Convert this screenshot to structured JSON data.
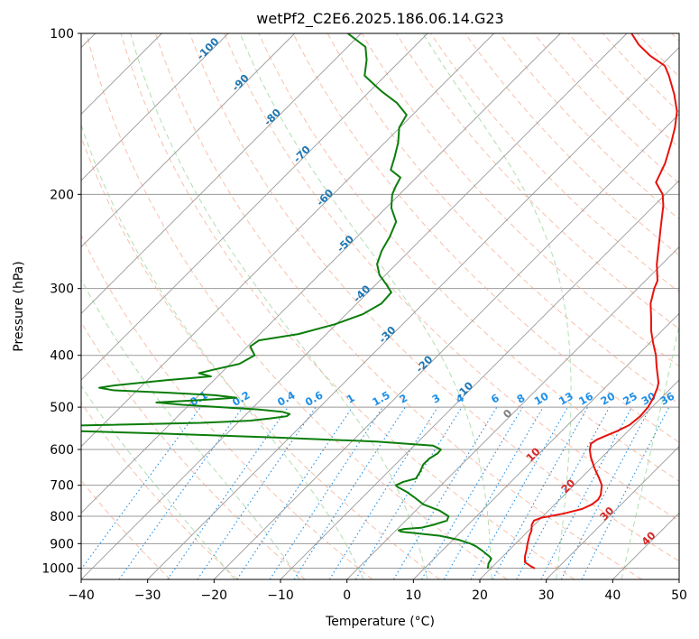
{
  "chart_data": {
    "type": "line",
    "chart_kind": "skew-T log-P diagram",
    "title": "wetPf2_C2E6.2025.186.06.14.G23",
    "xlabel": "Temperature (°C)",
    "ylabel": "Pressure (hPa)",
    "xlim": [
      -40,
      50
    ],
    "ylim": [
      1050,
      100
    ],
    "y_scale": "log",
    "x_ticks": [
      -40,
      -30,
      -20,
      -10,
      0,
      10,
      20,
      30,
      40,
      50
    ],
    "x_tick_labels": [
      "−40",
      "−30",
      "−20",
      "−10",
      "0",
      "10",
      "20",
      "30",
      "40",
      "50"
    ],
    "y_ticks": [
      100,
      200,
      300,
      400,
      500,
      600,
      700,
      800,
      900,
      1000
    ],
    "y_tick_labels": [
      "100",
      "200",
      "300",
      "400",
      "500",
      "600",
      "700",
      "800",
      "900",
      "1000"
    ],
    "grid": true,
    "colors": {
      "temperature": "#e8120c",
      "dewpoint": "#0b7d0b",
      "isotherm": "#999999",
      "dry_adiabat": "#f4a58a",
      "moist_adiabat": "#9fd49f",
      "mixing_ratio": "#1f8fe6",
      "isotherm_label": "#1f77b4",
      "dry_adiabat_label": "#d62728",
      "zero_label": "#7f7f7f"
    },
    "series": [
      {
        "key": "temperature",
        "points": [
          [
            1000,
            26.5
          ],
          [
            990,
            25.5
          ],
          [
            975,
            24.2
          ],
          [
            950,
            23.3
          ],
          [
            925,
            22.6
          ],
          [
            900,
            21.8
          ],
          [
            870,
            20.9
          ],
          [
            850,
            20.4
          ],
          [
            830,
            19.6
          ],
          [
            815,
            19.3
          ],
          [
            805,
            20.0
          ],
          [
            800,
            21.0
          ],
          [
            790,
            22.8
          ],
          [
            775,
            24.8
          ],
          [
            760,
            25.6
          ],
          [
            745,
            25.8
          ],
          [
            730,
            25.5
          ],
          [
            700,
            24.2
          ],
          [
            680,
            22.8
          ],
          [
            650,
            20.5
          ],
          [
            620,
            18.3
          ],
          [
            600,
            17.0
          ],
          [
            585,
            16.3
          ],
          [
            575,
            16.6
          ],
          [
            565,
            17.4
          ],
          [
            555,
            18.3
          ],
          [
            540,
            19.3
          ],
          [
            520,
            19.6
          ],
          [
            500,
            19.4
          ],
          [
            480,
            18.8
          ],
          [
            460,
            17.9
          ],
          [
            450,
            17.3
          ],
          [
            420,
            14.6
          ],
          [
            400,
            12.8
          ],
          [
            380,
            10.6
          ],
          [
            360,
            8.4
          ],
          [
            340,
            6.4
          ],
          [
            320,
            4.2
          ],
          [
            300,
            2.5
          ],
          [
            290,
            1.8
          ],
          [
            270,
            -0.8
          ],
          [
            250,
            -3.2
          ],
          [
            230,
            -5.8
          ],
          [
            210,
            -8.6
          ],
          [
            200,
            -10.4
          ],
          [
            190,
            -13.2
          ],
          [
            175,
            -14.7
          ],
          [
            160,
            -16.9
          ],
          [
            150,
            -18.6
          ],
          [
            140,
            -20.7
          ],
          [
            130,
            -23.7
          ],
          [
            120,
            -27.3
          ],
          [
            115,
            -29.4
          ],
          [
            110,
            -33.2
          ],
          [
            105,
            -36.5
          ],
          [
            100,
            -39.3
          ]
        ]
      },
      {
        "key": "dewpoint",
        "points": [
          [
            1000,
            19.5
          ],
          [
            980,
            18.9
          ],
          [
            960,
            18.6
          ],
          [
            950,
            17.9
          ],
          [
            925,
            15.8
          ],
          [
            910,
            14.4
          ],
          [
            900,
            13.2
          ],
          [
            885,
            10.8
          ],
          [
            870,
            7.4
          ],
          [
            860,
            3.2
          ],
          [
            855,
            1.0
          ],
          [
            850,
            0.4
          ],
          [
            845,
            1.0
          ],
          [
            840,
            3.5
          ],
          [
            830,
            4.8
          ],
          [
            815,
            6.2
          ],
          [
            800,
            5.8
          ],
          [
            780,
            3.5
          ],
          [
            760,
            0.2
          ],
          [
            740,
            -1.9
          ],
          [
            720,
            -4.2
          ],
          [
            705,
            -6.3
          ],
          [
            700,
            -6.8
          ],
          [
            690,
            -6.2
          ],
          [
            680,
            -4.8
          ],
          [
            660,
            -5.2
          ],
          [
            640,
            -5.8
          ],
          [
            625,
            -5.8
          ],
          [
            610,
            -5.3
          ],
          [
            600,
            -5.4
          ],
          [
            590,
            -7.2
          ],
          [
            580,
            -16.3
          ],
          [
            570,
            -31.6
          ],
          [
            560,
            -50.4
          ],
          [
            550,
            -72.6
          ],
          [
            545,
            -74.0
          ],
          [
            540,
            -60.0
          ],
          [
            535,
            -45.5
          ],
          [
            530,
            -38.5
          ],
          [
            525,
            -35.8
          ],
          [
            520,
            -33.6
          ],
          [
            515,
            -33.5
          ],
          [
            510,
            -35.0
          ],
          [
            505,
            -39.0
          ],
          [
            500,
            -45.0
          ],
          [
            495,
            -51.0
          ],
          [
            490,
            -55.3
          ],
          [
            485,
            -49.0
          ],
          [
            480,
            -44.0
          ],
          [
            475,
            -47.6
          ],
          [
            470,
            -55.0
          ],
          [
            465,
            -63.6
          ],
          [
            460,
            -66.1
          ],
          [
            455,
            -64.0
          ],
          [
            445,
            -57.0
          ],
          [
            438,
            -51.0
          ],
          [
            432,
            -53.3
          ],
          [
            425,
            -51.5
          ],
          [
            415,
            -48.6
          ],
          [
            400,
            -47.6
          ],
          [
            385,
            -49.6
          ],
          [
            375,
            -49.2
          ],
          [
            365,
            -44.2
          ],
          [
            350,
            -40.2
          ],
          [
            335,
            -37.5
          ],
          [
            320,
            -36.3
          ],
          [
            305,
            -36.5
          ],
          [
            295,
            -38.4
          ],
          [
            283,
            -40.9
          ],
          [
            270,
            -42.9
          ],
          [
            255,
            -44.2
          ],
          [
            240,
            -45.1
          ],
          [
            225,
            -46.4
          ],
          [
            212,
            -49.2
          ],
          [
            200,
            -51.1
          ],
          [
            193,
            -51.8
          ],
          [
            186,
            -52.4
          ],
          [
            180,
            -55.0
          ],
          [
            170,
            -56.4
          ],
          [
            160,
            -58.0
          ],
          [
            150,
            -60.1
          ],
          [
            142,
            -60.9
          ],
          [
            135,
            -64.1
          ],
          [
            128,
            -68.4
          ],
          [
            120,
            -73.1
          ],
          [
            112,
            -75.2
          ],
          [
            106,
            -77.3
          ],
          [
            100,
            -82.0
          ]
        ]
      }
    ],
    "isotherm_labels": [
      "-100",
      "-90",
      "-80",
      "-70",
      "-60",
      "-50",
      "-40",
      "-30",
      "-20",
      "-10"
    ],
    "zero_label": "0",
    "dry_adiabat_labels": [
      "10",
      "20",
      "30",
      "40"
    ],
    "mixing_ratio_labels": [
      "0.1",
      "0.2",
      "0.4",
      "0.6",
      "1",
      "1.5",
      "2",
      "3",
      "4",
      "6",
      "8",
      "10",
      "13",
      "16",
      "20",
      "25",
      "30",
      "36"
    ],
    "moist_adiabat_start_temps": [
      -20,
      -10,
      0,
      10,
      20,
      30,
      40
    ]
  }
}
